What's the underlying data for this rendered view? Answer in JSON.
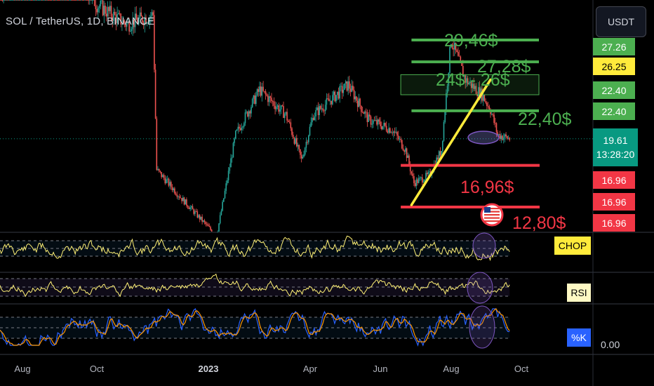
{
  "header": {
    "title": "SOL / TetherUS, 1D, BINANCE",
    "currency_button": "USDT"
  },
  "price_tags": [
    {
      "label": "27.26",
      "color": "#4caf50",
      "text": "dark"
    },
    {
      "label": "26.25",
      "color": "#ffeb3b",
      "text": "light"
    },
    {
      "label": "22.40",
      "color": "#4caf50",
      "text": "dark"
    },
    {
      "label": "22.40",
      "color": "#4caf50",
      "text": "dark"
    },
    {
      "label": "19.61",
      "sub": "13:28:20",
      "color": "#089981",
      "text": "dark"
    },
    {
      "label": "16.96",
      "color": "#f23645",
      "text": "dark"
    },
    {
      "label": "16.96",
      "color": "#f23645",
      "text": "dark"
    },
    {
      "label": "16.96",
      "color": "#f23645",
      "text": "dark"
    }
  ],
  "annotations": {
    "a1": "29,46$",
    "a2": "27,28$",
    "a3": "24$ - 26$",
    "a4": "22,40$",
    "a5": "16,96$",
    "a6": "12,80$"
  },
  "indicators": {
    "chop": {
      "label": "CHOP",
      "bg": "#ffeb3b"
    },
    "rsi": {
      "label": "RSI",
      "bg": "#fff9c4"
    },
    "stoch": {
      "label": "%K",
      "bg": "#2962ff",
      "value": "0.00"
    }
  },
  "x_axis": {
    "labels": [
      {
        "text": "Aug",
        "year": false
      },
      {
        "text": "Oct",
        "year": false
      },
      {
        "text": "2023",
        "year": true
      },
      {
        "text": "Apr",
        "year": false
      },
      {
        "text": "Jun",
        "year": false
      },
      {
        "text": "Aug",
        "year": false
      },
      {
        "text": "Oct",
        "year": false
      }
    ]
  },
  "chart_data": {
    "type": "candlestick",
    "symbol": "SOL / TetherUS",
    "interval": "1D",
    "exchange": "BINANCE",
    "x_range": [
      "2022-07",
      "2023-10"
    ],
    "close_path": [
      [
        "2022-07-01",
        34
      ],
      [
        "2022-08-10",
        44
      ],
      [
        "2022-09-01",
        36
      ],
      [
        "2022-09-20",
        33
      ],
      [
        "2022-10-15",
        31
      ],
      [
        "2022-11-06",
        32
      ],
      [
        "2022-11-09",
        16.5
      ],
      [
        "2022-12-01",
        13.5
      ],
      [
        "2022-12-29",
        9.9
      ],
      [
        "2023-01-14",
        20
      ],
      [
        "2023-02-03",
        24.5
      ],
      [
        "2023-02-25",
        22
      ],
      [
        "2023-03-10",
        17.5
      ],
      [
        "2023-03-20",
        22
      ],
      [
        "2023-04-18",
        25
      ],
      [
        "2023-05-05",
        21.5
      ],
      [
        "2023-05-25",
        20.5
      ],
      [
        "2023-06-05",
        18.5
      ],
      [
        "2023-06-12",
        15.2
      ],
      [
        "2023-06-25",
        16
      ],
      [
        "2023-07-05",
        18.5
      ],
      [
        "2023-07-13",
        29.5
      ],
      [
        "2023-07-25",
        25.5
      ],
      [
        "2023-08-08",
        24
      ],
      [
        "2023-08-15",
        22.5
      ],
      [
        "2023-08-21",
        20
      ],
      [
        "2023-08-31",
        19.61
      ]
    ],
    "current_price": 19.61,
    "countdown": "13:28:20",
    "levels": [
      {
        "label": "29,46$",
        "price": 29.46,
        "color": "#4caf50"
      },
      {
        "label": "27,28$",
        "price": 27.28,
        "color": "#4caf50"
      },
      {
        "label": "22,40$",
        "price": 22.4,
        "color": "#4caf50"
      },
      {
        "label": "16,96$",
        "price": 16.96,
        "color": "#f23645"
      },
      {
        "label": "12,80$",
        "price": 12.8,
        "color": "#f23645"
      }
    ],
    "zone": {
      "label": "24$ - 26$",
      "from": 24,
      "to": 26
    },
    "trendline": {
      "from": [
        "2023-06-10",
        13
      ],
      "to": [
        "2023-08-15",
        25.5
      ],
      "color": "#ffeb3b"
    },
    "indicators": [
      "CHOP",
      "RSI",
      "%K"
    ],
    "grid": false
  }
}
